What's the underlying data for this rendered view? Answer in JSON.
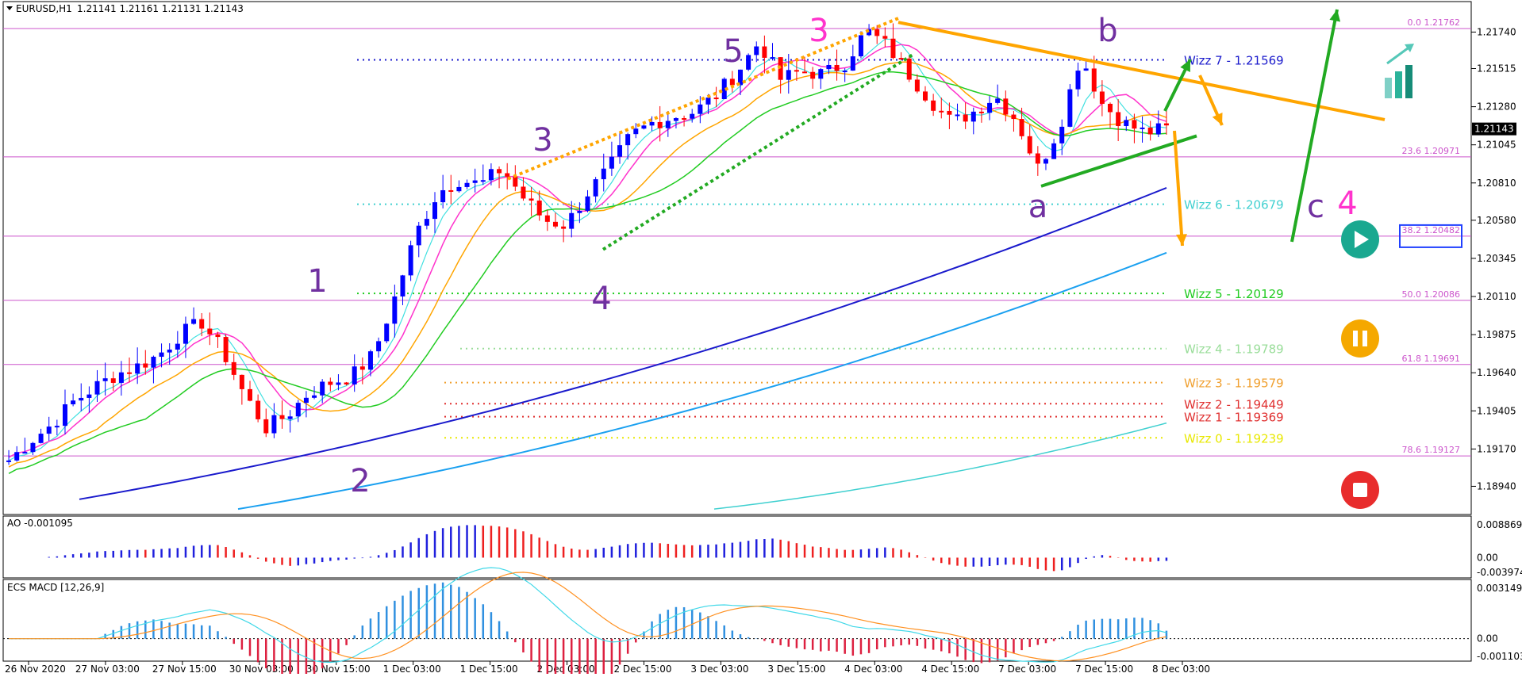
{
  "header": {
    "symbol": "EURUSD,H1",
    "ohlc": "1.21141 1.21161 1.21131 1.21143"
  },
  "colors": {
    "bull": "#0000ff",
    "bear": "#ff0000",
    "wave_purple": "#7030a0",
    "wave_pink": "#ff33cc",
    "orange": "#ffa500",
    "green": "#22aa22",
    "fib": "#cc44cc"
  },
  "chart_data": {
    "type": "line",
    "title": "",
    "instrument": "EURUSD,H1",
    "x_tick_labels": [
      "26 Nov 2020",
      "27 Nov 03:00",
      "27 Nov 15:00",
      "30 Nov 03:00",
      "30 Nov 15:00",
      "1 Dec 03:00",
      "1 Dec 15:00",
      "2 Dec 03:00",
      "2 Dec 15:00",
      "3 Dec 03:00",
      "3 Dec 15:00",
      "4 Dec 03:00",
      "4 Dec 15:00",
      "7 Dec 03:00",
      "7 Dec 15:00",
      "8 Dec 03:00"
    ],
    "y_ticks": [
      "1.21740",
      "1.21515",
      "1.21280",
      "1.21045",
      "1.20810",
      "1.20580",
      "1.20345",
      "1.20110",
      "1.19875",
      "1.19640",
      "1.19405",
      "1.19170",
      "1.18940"
    ],
    "y_range": [
      1.1882,
      1.2184
    ],
    "last_price": "1.21143",
    "approx_price_path": [
      1.191,
      1.1922,
      1.1932,
      1.1946,
      1.1955,
      1.1963,
      1.1968,
      1.1975,
      1.1988,
      1.1995,
      1.1977,
      1.195,
      1.193,
      1.1938,
      1.1952,
      1.1958,
      1.1962,
      1.1975,
      1.201,
      1.205,
      1.2075,
      1.2083,
      1.208,
      1.209,
      1.2072,
      1.2058,
      1.2055,
      1.2075,
      1.209,
      1.211,
      1.2118,
      1.2122,
      1.2125,
      1.2135,
      1.215,
      1.2168,
      1.2145,
      1.215,
      1.2148,
      1.2155,
      1.2175,
      1.2165,
      1.2148,
      1.2132,
      1.2118,
      1.2125,
      1.2135,
      1.212,
      1.209,
      1.2115,
      1.216,
      1.213,
      1.2118,
      1.2112,
      1.21143
    ],
    "fib_levels": [
      {
        "label": "0.0 1.21762",
        "price": 1.21762
      },
      {
        "label": "23.6 1.20971",
        "price": 1.20971
      },
      {
        "label": "38.2 1.20482",
        "price": 1.20482
      },
      {
        "label": "50.0 1.20086",
        "price": 1.20086
      },
      {
        "label": "61.8 1.19691",
        "price": 1.19691
      },
      {
        "label": "78.6 1.19127",
        "price": 1.19127
      }
    ],
    "wizz_levels": [
      {
        "label": "Wizz 7 - 1.21569",
        "price": 1.21569,
        "color": "#1a1acc"
      },
      {
        "label": "Wizz 6 - 1.20679",
        "price": 1.20679,
        "color": "#40d0d0"
      },
      {
        "label": "Wizz 5 - 1.20129",
        "price": 1.20129,
        "color": "#22cc22"
      },
      {
        "label": "Wizz 4 - 1.19789",
        "price": 1.19789,
        "color": "#99dd99"
      },
      {
        "label": "Wizz 3 - 1.19579",
        "price": 1.19579,
        "color": "#f0a030"
      },
      {
        "label": "Wizz 2 - 1.19449",
        "price": 1.19449,
        "color": "#e03030"
      },
      {
        "label": "Wizz 1 - 1.19369",
        "price": 1.19369,
        "color": "#e03030"
      },
      {
        "label": "Wizz 0 - 1.19239",
        "price": 1.19239,
        "color": "#e8e800"
      }
    ],
    "wave_labels": [
      "1",
      "2",
      "3",
      "4",
      "5",
      "3",
      "a",
      "b",
      "c",
      "4"
    ],
    "ao": {
      "label": "AO -0.001095",
      "ticks": [
        "0.008869",
        "0.00",
        "-0.003974"
      ],
      "range": [
        -0.003974,
        0.008869
      ]
    },
    "macd": {
      "label": "ECS MACD [12,26,9]",
      "ticks": [
        "0.0031494",
        "0.00",
        "-0.0011034"
      ],
      "range": [
        -0.0011034,
        0.0031494
      ]
    }
  }
}
